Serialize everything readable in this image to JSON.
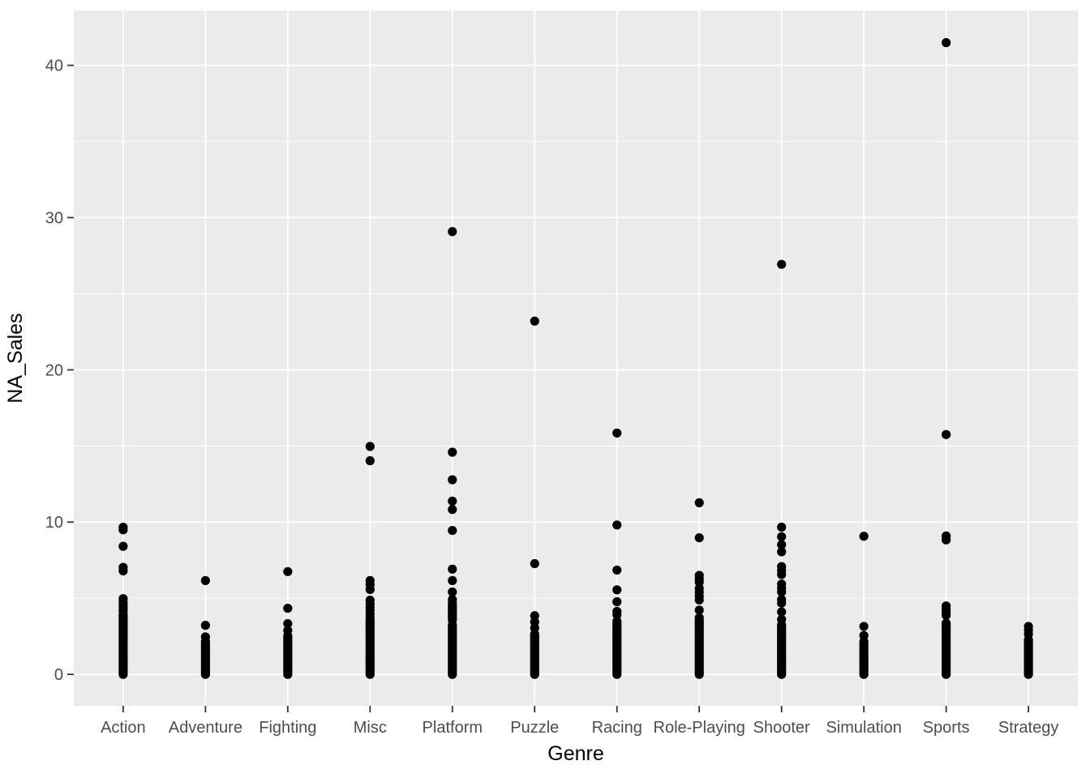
{
  "chart_data": {
    "type": "scatter",
    "subtype": "strip-plot",
    "title": "",
    "xlabel": "Genre",
    "ylabel": "NA_Sales",
    "ylim": [
      -2.07,
      43.6
    ],
    "y_major_ticks": [
      0,
      10,
      20,
      30,
      40
    ],
    "y_minor_ticks": [
      5,
      15,
      25,
      35
    ],
    "grid": "on",
    "legend": "none",
    "panel_bg": "#EBEBEB",
    "grid_color": "#FFFFFF",
    "point_color": "#000000",
    "tick_label_color": "#4D4D4D",
    "tick_mark_color": "#333333",
    "axis_title_color": "#000000",
    "categories": [
      "Action",
      "Adventure",
      "Fighting",
      "Misc",
      "Platform",
      "Puzzle",
      "Racing",
      "Role-Playing",
      "Shooter",
      "Simulation",
      "Sports",
      "Strategy"
    ],
    "series": [
      {
        "genre": "Action",
        "points": [
          9.66,
          9.49,
          8.41,
          7.03,
          6.8,
          4.97,
          4.76,
          4.57,
          4.38,
          4.19
        ],
        "dense_runs": [
          [
            0,
            4.0
          ]
        ]
      },
      {
        "genre": "Adventure",
        "points": [
          6.16,
          3.22,
          2.46
        ],
        "dense_runs": [
          [
            0,
            2.25
          ]
        ]
      },
      {
        "genre": "Fighting",
        "points": [
          6.75,
          4.34,
          3.33,
          2.88
        ],
        "dense_runs": [
          [
            0,
            2.58
          ]
        ]
      },
      {
        "genre": "Misc",
        "points": [
          14.97,
          14.03,
          6.16,
          5.89,
          5.57,
          4.87,
          4.64,
          4.41,
          4.19,
          3.97
        ],
        "dense_runs": [
          [
            0,
            3.75
          ]
        ]
      },
      {
        "genre": "Platform",
        "points": [
          29.08,
          14.59,
          12.78,
          11.38,
          10.83,
          9.45,
          6.91,
          6.16,
          5.41,
          4.92,
          4.71
        ],
        "dense_runs": [
          [
            0,
            3.32
          ],
          [
            3.58,
            4.55
          ]
        ]
      },
      {
        "genre": "Puzzle",
        "points": [
          23.2,
          7.27,
          3.85,
          3.44,
          3.05
        ],
        "dense_runs": [
          [
            0,
            2.69
          ]
        ]
      },
      {
        "genre": "Racing",
        "points": [
          15.85,
          9.81,
          6.85,
          5.55,
          4.77,
          4.13,
          3.91
        ],
        "dense_runs": [
          [
            0,
            3.56
          ]
        ]
      },
      {
        "genre": "Role-Playing",
        "points": [
          11.27,
          8.97,
          6.5,
          6.27,
          6.06,
          5.65,
          5.39,
          5.12,
          4.89,
          4.22
        ],
        "dense_runs": [
          [
            0,
            3.72
          ]
        ]
      },
      {
        "genre": "Shooter",
        "points": [
          26.93,
          9.67,
          9.04,
          8.52,
          8.05,
          7.08,
          6.81,
          6.55,
          5.93,
          5.66,
          5.41,
          4.91,
          4.68,
          4.1,
          3.61
        ],
        "dense_runs": [
          [
            0,
            3.34
          ]
        ]
      },
      {
        "genre": "Simulation",
        "points": [
          9.07,
          3.15,
          2.55
        ],
        "dense_runs": [
          [
            0,
            2.26
          ]
        ]
      },
      {
        "genre": "Sports",
        "points": [
          41.49,
          15.75,
          9.09,
          8.83,
          4.49,
          4.28,
          4.07,
          3.88
        ],
        "dense_runs": [
          [
            0,
            3.47
          ]
        ]
      },
      {
        "genre": "Strategy",
        "points": [
          3.15,
          2.9,
          2.65
        ],
        "dense_runs": [
          [
            0,
            2.35
          ]
        ]
      }
    ]
  }
}
